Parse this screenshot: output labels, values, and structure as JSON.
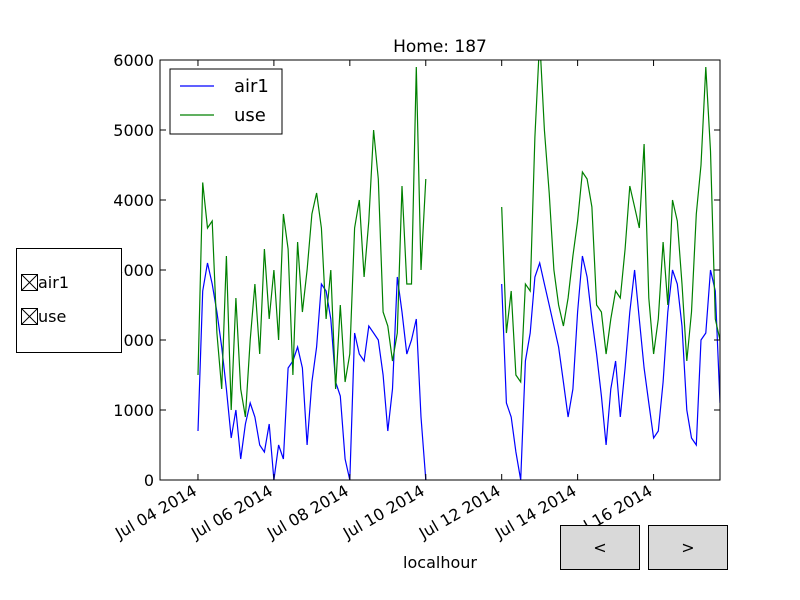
{
  "chart_data": {
    "type": "line",
    "title": "Home: 187",
    "xlabel": "localhour",
    "ylabel": "",
    "xlim": [
      "2014-07-03",
      "2014-07-17T18:00"
    ],
    "ylim": [
      0,
      6000
    ],
    "y_ticks": [
      0,
      1000,
      2000,
      3000,
      4000,
      5000,
      6000
    ],
    "y_tick_labels": [
      "0",
      "1000",
      "2000",
      "3000",
      "4000",
      "5000",
      "6000"
    ],
    "x_ticks": [
      "2014-07-04",
      "2014-07-06",
      "2014-07-08",
      "2014-07-10",
      "2014-07-12",
      "2014-07-14",
      "2014-07-16"
    ],
    "x_tick_labels": [
      "Jul 04 2014",
      "Jul 06 2014",
      "Jul 08 2014",
      "Jul 10 2014",
      "Jul 12 2014",
      "Jul 14 2014",
      "Jul 16 2014"
    ],
    "grid": false,
    "legend_position": "top-left",
    "series": [
      {
        "name": "air1",
        "color": "#0000ff",
        "x": [
          "2014-07-04T00:00",
          "2014-07-04T03:00",
          "2014-07-04T06:00",
          "2014-07-04T09:00",
          "2014-07-04T12:00",
          "2014-07-04T15:00",
          "2014-07-04T18:00",
          "2014-07-04T21:00",
          "2014-07-05T00:00",
          "2014-07-05T03:00",
          "2014-07-05T06:00",
          "2014-07-05T09:00",
          "2014-07-05T12:00",
          "2014-07-05T15:00",
          "2014-07-05T18:00",
          "2014-07-05T21:00",
          "2014-07-06T00:00",
          "2014-07-06T03:00",
          "2014-07-06T06:00",
          "2014-07-06T09:00",
          "2014-07-06T12:00",
          "2014-07-06T15:00",
          "2014-07-06T18:00",
          "2014-07-06T21:00",
          "2014-07-07T00:00",
          "2014-07-07T03:00",
          "2014-07-07T06:00",
          "2014-07-07T09:00",
          "2014-07-07T12:00",
          "2014-07-07T15:00",
          "2014-07-07T18:00",
          "2014-07-07T21:00",
          "2014-07-08T00:00",
          "2014-07-08T03:00",
          "2014-07-08T06:00",
          "2014-07-08T09:00",
          "2014-07-08T12:00",
          "2014-07-08T15:00",
          "2014-07-08T18:00",
          "2014-07-08T21:00",
          "2014-07-09T00:00",
          "2014-07-09T03:00",
          "2014-07-09T06:00",
          "2014-07-09T09:00",
          "2014-07-09T12:00",
          "2014-07-09T15:00",
          "2014-07-09T18:00",
          "2014-07-09T21:00",
          "2014-07-10T00:00",
          "2014-07-10T03:00",
          "2014-07-10T06:00",
          "2014-07-10T09:00",
          "2014-07-10T12:00",
          "2014-07-10T15:00",
          "2014-07-10T18:00",
          "2014-07-10T21:00",
          "2014-07-11T00:00",
          "2014-07-11T03:00",
          "2014-07-11T06:00",
          "2014-07-11T09:00",
          "2014-07-11T12:00",
          "2014-07-11T15:00",
          "2014-07-11T18:00",
          "2014-07-11T21:00",
          "2014-07-12T00:00",
          "2014-07-12T03:00",
          "2014-07-12T06:00",
          "2014-07-12T09:00",
          "2014-07-12T12:00",
          "2014-07-12T15:00",
          "2014-07-12T18:00",
          "2014-07-12T21:00",
          "2014-07-13T00:00",
          "2014-07-13T03:00",
          "2014-07-13T06:00",
          "2014-07-13T09:00",
          "2014-07-13T12:00",
          "2014-07-13T15:00",
          "2014-07-13T18:00",
          "2014-07-13T21:00",
          "2014-07-14T00:00",
          "2014-07-14T03:00",
          "2014-07-14T06:00",
          "2014-07-14T09:00",
          "2014-07-14T12:00",
          "2014-07-14T15:00",
          "2014-07-14T18:00",
          "2014-07-14T21:00",
          "2014-07-15T00:00",
          "2014-07-15T03:00",
          "2014-07-15T06:00",
          "2014-07-15T09:00",
          "2014-07-15T12:00",
          "2014-07-15T15:00",
          "2014-07-15T18:00",
          "2014-07-15T21:00",
          "2014-07-16T00:00",
          "2014-07-16T03:00",
          "2014-07-16T06:00",
          "2014-07-16T09:00",
          "2014-07-16T12:00",
          "2014-07-16T15:00",
          "2014-07-16T18:00",
          "2014-07-16T21:00",
          "2014-07-17T00:00",
          "2014-07-17T03:00",
          "2014-07-17T06:00",
          "2014-07-17T09:00",
          "2014-07-17T12:00",
          "2014-07-17T15:00",
          "2014-07-17T18:00"
        ],
        "values": [
          700,
          2700,
          3100,
          2800,
          2400,
          1900,
          1300,
          600,
          1000,
          300,
          800,
          1100,
          900,
          500,
          400,
          800,
          0,
          500,
          300,
          1600,
          1700,
          1900,
          1600,
          500,
          1400,
          1900,
          2800,
          2700,
          2300,
          1400,
          1200,
          300,
          0,
          2100,
          1800,
          1700,
          2200,
          2100,
          2000,
          1500,
          700,
          1300,
          2900,
          2400,
          1800,
          2000,
          2300,
          900,
          0,
          null,
          null,
          null,
          null,
          null,
          null,
          null,
          null,
          null,
          null,
          null,
          null,
          null,
          null,
          null,
          2800,
          1100,
          900,
          400,
          0,
          1700,
          2100,
          2900,
          3100,
          2800,
          2500,
          2200,
          1900,
          1400,
          900,
          1300,
          2400,
          3200,
          2900,
          2300,
          1800,
          1200,
          500,
          1300,
          1700,
          900,
          1600,
          2400,
          3000,
          2300,
          1600,
          1100,
          600,
          700,
          1400,
          2400,
          3000,
          2800,
          2200,
          1000,
          600,
          500,
          2000,
          2100,
          3000,
          2700,
          1100
        ]
      },
      {
        "name": "use",
        "color": "#008000",
        "x": [
          "2014-07-04T00:00",
          "2014-07-04T03:00",
          "2014-07-04T06:00",
          "2014-07-04T09:00",
          "2014-07-04T12:00",
          "2014-07-04T15:00",
          "2014-07-04T18:00",
          "2014-07-04T21:00",
          "2014-07-05T00:00",
          "2014-07-05T03:00",
          "2014-07-05T06:00",
          "2014-07-05T09:00",
          "2014-07-05T12:00",
          "2014-07-05T15:00",
          "2014-07-05T18:00",
          "2014-07-05T21:00",
          "2014-07-06T00:00",
          "2014-07-06T03:00",
          "2014-07-06T06:00",
          "2014-07-06T09:00",
          "2014-07-06T12:00",
          "2014-07-06T15:00",
          "2014-07-06T18:00",
          "2014-07-06T21:00",
          "2014-07-07T00:00",
          "2014-07-07T03:00",
          "2014-07-07T06:00",
          "2014-07-07T09:00",
          "2014-07-07T12:00",
          "2014-07-07T15:00",
          "2014-07-07T18:00",
          "2014-07-07T21:00",
          "2014-07-08T00:00",
          "2014-07-08T03:00",
          "2014-07-08T06:00",
          "2014-07-08T09:00",
          "2014-07-08T12:00",
          "2014-07-08T15:00",
          "2014-07-08T18:00",
          "2014-07-08T21:00",
          "2014-07-09T00:00",
          "2014-07-09T03:00",
          "2014-07-09T06:00",
          "2014-07-09T09:00",
          "2014-07-09T12:00",
          "2014-07-09T15:00",
          "2014-07-09T18:00",
          "2014-07-09T21:00",
          "2014-07-10T00:00",
          "2014-07-10T03:00",
          "2014-07-10T06:00",
          "2014-07-10T09:00",
          "2014-07-10T12:00",
          "2014-07-10T15:00",
          "2014-07-10T18:00",
          "2014-07-10T21:00",
          "2014-07-11T00:00",
          "2014-07-11T03:00",
          "2014-07-11T06:00",
          "2014-07-11T09:00",
          "2014-07-11T12:00",
          "2014-07-11T15:00",
          "2014-07-11T18:00",
          "2014-07-11T21:00",
          "2014-07-12T00:00",
          "2014-07-12T03:00",
          "2014-07-12T06:00",
          "2014-07-12T09:00",
          "2014-07-12T12:00",
          "2014-07-12T15:00",
          "2014-07-12T18:00",
          "2014-07-12T21:00",
          "2014-07-13T00:00",
          "2014-07-13T03:00",
          "2014-07-13T06:00",
          "2014-07-13T09:00",
          "2014-07-13T12:00",
          "2014-07-13T15:00",
          "2014-07-13T18:00",
          "2014-07-13T21:00",
          "2014-07-14T00:00",
          "2014-07-14T03:00",
          "2014-07-14T06:00",
          "2014-07-14T09:00",
          "2014-07-14T12:00",
          "2014-07-14T15:00",
          "2014-07-14T18:00",
          "2014-07-14T21:00",
          "2014-07-15T00:00",
          "2014-07-15T03:00",
          "2014-07-15T06:00",
          "2014-07-15T09:00",
          "2014-07-15T12:00",
          "2014-07-15T15:00",
          "2014-07-15T18:00",
          "2014-07-15T21:00",
          "2014-07-16T00:00",
          "2014-07-16T03:00",
          "2014-07-16T06:00",
          "2014-07-16T09:00",
          "2014-07-16T12:00",
          "2014-07-16T15:00",
          "2014-07-16T18:00",
          "2014-07-16T21:00",
          "2014-07-17T00:00",
          "2014-07-17T03:00",
          "2014-07-17T06:00",
          "2014-07-17T09:00",
          "2014-07-17T12:00",
          "2014-07-17T15:00",
          "2014-07-17T18:00"
        ],
        "values": [
          1500,
          4250,
          3600,
          3700,
          2100,
          1300,
          3200,
          1000,
          2600,
          1300,
          900,
          2000,
          2800,
          1800,
          3300,
          2300,
          3000,
          2000,
          3800,
          3300,
          1500,
          3400,
          2400,
          3000,
          3800,
          4100,
          3600,
          2300,
          3000,
          1300,
          2500,
          1400,
          1800,
          3600,
          4000,
          2900,
          3700,
          5000,
          4300,
          2400,
          2200,
          1700,
          2100,
          4200,
          2800,
          2800,
          5900,
          3000,
          4300,
          null,
          null,
          null,
          null,
          null,
          null,
          null,
          null,
          null,
          null,
          null,
          null,
          null,
          null,
          null,
          3900,
          2100,
          2700,
          1500,
          1400,
          2800,
          2700,
          4900,
          6300,
          5000,
          4100,
          3000,
          2500,
          2200,
          2600,
          3200,
          3700,
          4400,
          4300,
          3900,
          2500,
          2400,
          1800,
          2300,
          2700,
          2600,
          3300,
          4200,
          3900,
          3600,
          4800,
          2600,
          1800,
          2300,
          3400,
          2500,
          4000,
          3700,
          2800,
          1700,
          2400,
          3800,
          4500,
          5900,
          4700,
          2300,
          2000
        ]
      }
    ]
  },
  "legend": {
    "items": [
      "air1",
      "use"
    ]
  },
  "check_panel": {
    "items": [
      "air1",
      "use"
    ]
  },
  "nav": {
    "prev_label": "<",
    "next_label": ">"
  }
}
